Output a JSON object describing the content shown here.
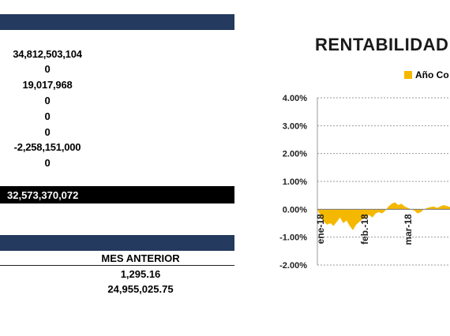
{
  "top_table": {
    "values": [
      "34,812,503,104",
      "0",
      "19,017,968",
      "0",
      "0",
      "0",
      "-2,258,151,000",
      "0"
    ],
    "total": "32,573,370,072"
  },
  "bottom_table": {
    "header": "MES ANTERIOR",
    "values": [
      "1,295.16",
      "24,955,025.75"
    ]
  },
  "colors": {
    "header_bar": "#243a5e",
    "series": "#f5b800",
    "gain_series": "#d9cfb0"
  },
  "chart_data": {
    "type": "area",
    "title": "RENTABILIDAD",
    "legend": [
      "Año Co"
    ],
    "y_ticks": [
      "4.00%",
      "3.00%",
      "2.00%",
      "1.00%",
      "0.00%",
      "-1.00%",
      "-2.00%"
    ],
    "ylim": [
      -2.0,
      4.0
    ],
    "grid": true,
    "x_ticks": [
      "ene-18",
      "feb.-18",
      "mar-18"
    ],
    "series": [
      {
        "values": [
          0,
          -0.25,
          -0.45,
          -0.55,
          -0.5,
          -0.6,
          -0.45,
          -0.3,
          -0.5,
          -0.4,
          -0.6,
          -0.75,
          -0.55,
          -0.45,
          -0.35,
          -0.3,
          -0.2,
          -0.3,
          -0.15,
          -0.1,
          -0.15,
          -0.05,
          0.1,
          0.2,
          0.25,
          0.15,
          0.2,
          0.1,
          0.05,
          0.0,
          -0.05,
          -0.15,
          -0.1,
          0.0,
          0.05,
          0.08,
          0.1,
          0.05,
          0.1,
          0.15,
          0.12,
          0.08
        ]
      }
    ]
  }
}
